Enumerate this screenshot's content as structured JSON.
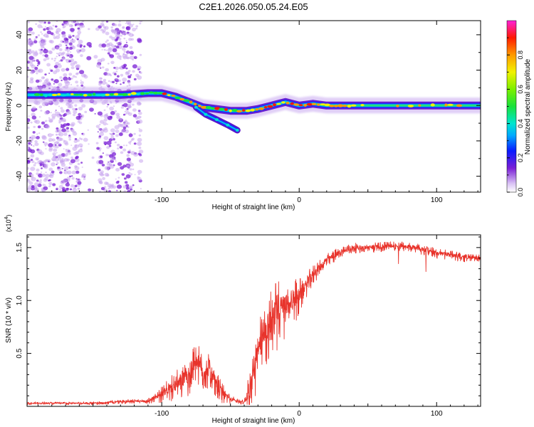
{
  "title": "C2E1.2026.050.05.24.E05",
  "chart_data": [
    {
      "type": "heatmap",
      "xlabel": "Height of straight line (km)",
      "ylabel": "Frequency (Hz)",
      "xlim": [
        -198,
        132
      ],
      "ylim": [
        -49,
        48
      ],
      "xticks": [
        {
          "v": -100,
          "label": "-100"
        },
        {
          "v": 0,
          "label": "0"
        },
        {
          "v": 100,
          "label": "100"
        }
      ],
      "yticks": [
        {
          "v": -40,
          "label": "-40"
        },
        {
          "v": -20,
          "label": "-20"
        },
        {
          "v": 0,
          "label": "0"
        },
        {
          "v": 20,
          "label": "20"
        },
        {
          "v": 40,
          "label": "40"
        }
      ],
      "colorbar": {
        "label": "Normalized spectral amplitude",
        "range": [
          0,
          1
        ],
        "ticks": [
          {
            "v": 0.0,
            "label": "0.0"
          },
          {
            "v": 0.2,
            "label": "0.2"
          },
          {
            "v": 0.4,
            "label": "0.4"
          },
          {
            "v": 0.6,
            "label": "0.6"
          },
          {
            "v": 0.8,
            "label": "0.8"
          }
        ]
      },
      "ridge": [
        [
          -198,
          6
        ],
        [
          -160,
          6
        ],
        [
          -130,
          6
        ],
        [
          -110,
          7
        ],
        [
          -100,
          7
        ],
        [
          -90,
          5
        ],
        [
          -80,
          2
        ],
        [
          -70,
          -1
        ],
        [
          -60,
          -2
        ],
        [
          -50,
          -3
        ],
        [
          -45,
          -3
        ],
        [
          -38,
          -3
        ],
        [
          -30,
          -2
        ],
        [
          -20,
          0
        ],
        [
          -10,
          2
        ],
        [
          -5,
          1
        ],
        [
          0,
          0
        ],
        [
          10,
          1
        ],
        [
          20,
          0
        ],
        [
          40,
          0
        ],
        [
          60,
          0
        ],
        [
          80,
          0
        ],
        [
          100,
          0
        ],
        [
          132,
          0
        ]
      ],
      "branch": [
        [
          -75,
          -1
        ],
        [
          -68,
          -5
        ],
        [
          -60,
          -8
        ],
        [
          -52,
          -11
        ],
        [
          -45,
          -14
        ]
      ],
      "noise_region": [
        -198,
        -115
      ]
    },
    {
      "type": "line",
      "xlabel": "Height of straight line (km)",
      "ylabel": "SNR (10 * v/v)",
      "scale_label": "(x10",
      "scale_exp": "4",
      "scale_close": ")",
      "xlim": [
        -198,
        132
      ],
      "ylim": [
        0,
        16200
      ],
      "xticks": [
        {
          "v": -100,
          "label": "-100"
        },
        {
          "v": 0,
          "label": "0"
        },
        {
          "v": 100,
          "label": "100"
        }
      ],
      "yticks": [
        {
          "v": 5000,
          "label": "0.5"
        },
        {
          "v": 10000,
          "label": "1.0"
        },
        {
          "v": 15000,
          "label": "1.5"
        }
      ],
      "color": "#e8332b",
      "profile": [
        [
          -198,
          300
        ],
        [
          -150,
          300
        ],
        [
          -130,
          450
        ],
        [
          -110,
          500
        ],
        [
          -100,
          1200
        ],
        [
          -90,
          2000
        ],
        [
          -80,
          3000
        ],
        [
          -75,
          4500
        ],
        [
          -70,
          3200
        ],
        [
          -65,
          3500
        ],
        [
          -60,
          2000
        ],
        [
          -55,
          1200
        ],
        [
          -50,
          700
        ],
        [
          -45,
          500
        ],
        [
          -40,
          400
        ],
        [
          -35,
          2000
        ],
        [
          -30,
          5000
        ],
        [
          -25,
          7000
        ],
        [
          -20,
          8500
        ],
        [
          -15,
          9000
        ],
        [
          -10,
          9500
        ],
        [
          -5,
          10000
        ],
        [
          0,
          10500
        ],
        [
          5,
          11500
        ],
        [
          10,
          12500
        ],
        [
          20,
          13800
        ],
        [
          30,
          14600
        ],
        [
          40,
          15000
        ],
        [
          50,
          15000
        ],
        [
          60,
          15100
        ],
        [
          70,
          15200
        ],
        [
          80,
          15100
        ],
        [
          90,
          14800
        ],
        [
          100,
          14500
        ],
        [
          110,
          14300
        ],
        [
          120,
          14100
        ],
        [
          132,
          14000
        ]
      ],
      "noise_profile": [
        [
          -198,
          150
        ],
        [
          -150,
          150
        ],
        [
          -110,
          250
        ],
        [
          -100,
          800
        ],
        [
          -90,
          1500
        ],
        [
          -80,
          2000
        ],
        [
          -70,
          2000
        ],
        [
          -60,
          1400
        ],
        [
          -50,
          400
        ],
        [
          -40,
          200
        ],
        [
          -35,
          2500
        ],
        [
          -25,
          3500
        ],
        [
          -15,
          3500
        ],
        [
          -5,
          2500
        ],
        [
          5,
          1200
        ],
        [
          20,
          700
        ],
        [
          40,
          500
        ],
        [
          60,
          500
        ],
        [
          100,
          500
        ],
        [
          132,
          400
        ]
      ]
    }
  ]
}
